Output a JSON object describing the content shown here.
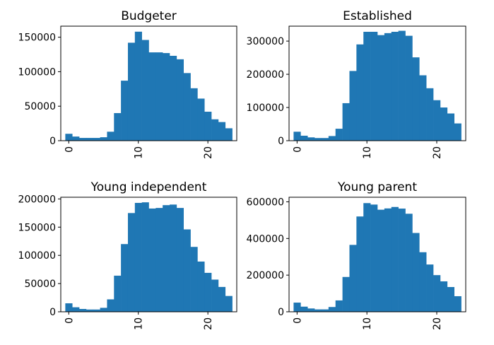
{
  "chart_data": [
    {
      "type": "bar",
      "title": "Budgeter",
      "x": [
        0,
        1,
        2,
        3,
        4,
        5,
        6,
        7,
        8,
        9,
        10,
        11,
        12,
        13,
        14,
        15,
        16,
        17,
        18,
        19,
        20,
        21,
        22,
        23
      ],
      "values": [
        10000,
        6000,
        4000,
        4000,
        4000,
        5000,
        13000,
        40000,
        87000,
        142000,
        158000,
        146000,
        128000,
        128000,
        127000,
        123000,
        118000,
        98000,
        76000,
        61000,
        42000,
        31000,
        27000,
        18000
      ],
      "xlim": [
        -1.15,
        24.15
      ],
      "ylim": [
        0,
        166000
      ],
      "xticks": [
        0,
        10,
        20
      ],
      "xtick_labels": [
        "0",
        "10",
        "20"
      ],
      "yticks": [
        0,
        50000,
        100000,
        150000
      ],
      "ytick_labels": [
        "0",
        "50000",
        "100000",
        "150000"
      ],
      "color": "#1f77b4",
      "grid": false
    },
    {
      "type": "bar",
      "title": "Established",
      "x": [
        0,
        1,
        2,
        3,
        4,
        5,
        6,
        7,
        8,
        9,
        10,
        11,
        12,
        13,
        14,
        15,
        16,
        17,
        18,
        19,
        20,
        21,
        22,
        23
      ],
      "values": [
        27000,
        15000,
        10000,
        8000,
        8000,
        14000,
        36000,
        113000,
        210000,
        290000,
        328000,
        328000,
        318000,
        324000,
        328000,
        331000,
        316000,
        251000,
        197000,
        158000,
        122000,
        100000,
        82000,
        52000
      ],
      "xlim": [
        -1.15,
        24.15
      ],
      "ylim": [
        0,
        345000
      ],
      "xticks": [
        0,
        10,
        20
      ],
      "xtick_labels": [
        "0",
        "10",
        "20"
      ],
      "yticks": [
        0,
        100000,
        200000,
        300000
      ],
      "ytick_labels": [
        "0",
        "100000",
        "200000",
        "300000"
      ],
      "color": "#1f77b4",
      "grid": false
    },
    {
      "type": "bar",
      "title": "Young independent",
      "x": [
        0,
        1,
        2,
        3,
        4,
        5,
        6,
        7,
        8,
        9,
        10,
        11,
        12,
        13,
        14,
        15,
        16,
        17,
        18,
        19,
        20,
        21,
        22,
        23
      ],
      "values": [
        15000,
        8000,
        5000,
        4000,
        4000,
        7000,
        22000,
        64000,
        120000,
        175000,
        193000,
        194000,
        183000,
        184000,
        189000,
        190000,
        184000,
        146000,
        115000,
        89000,
        69000,
        57000,
        44000,
        28000
      ],
      "xlim": [
        -1.15,
        24.15
      ],
      "ylim": [
        0,
        203000
      ],
      "xticks": [
        0,
        10,
        20
      ],
      "xtick_labels": [
        "0",
        "10",
        "20"
      ],
      "yticks": [
        0,
        50000,
        100000,
        150000,
        200000
      ],
      "ytick_labels": [
        "0",
        "50000",
        "100000",
        "150000",
        "200000"
      ],
      "color": "#1f77b4",
      "grid": false
    },
    {
      "type": "bar",
      "title": "Young parent",
      "x": [
        0,
        1,
        2,
        3,
        4,
        5,
        6,
        7,
        8,
        9,
        10,
        11,
        12,
        13,
        14,
        15,
        16,
        17,
        18,
        19,
        20,
        21,
        22,
        23
      ],
      "values": [
        50000,
        28000,
        18000,
        13000,
        13000,
        26000,
        62000,
        190000,
        365000,
        520000,
        593000,
        585000,
        557000,
        564000,
        572000,
        563000,
        535000,
        430000,
        325000,
        258000,
        200000,
        166000,
        135000,
        85000
      ],
      "xlim": [
        -1.15,
        24.15
      ],
      "ylim": [
        0,
        625000
      ],
      "xticks": [
        0,
        10,
        20
      ],
      "xtick_labels": [
        "0",
        "10",
        "20"
      ],
      "yticks": [
        0,
        200000,
        400000,
        600000
      ],
      "ytick_labels": [
        "0",
        "200000",
        "400000",
        "600000"
      ],
      "color": "#1f77b4",
      "grid": false
    }
  ]
}
